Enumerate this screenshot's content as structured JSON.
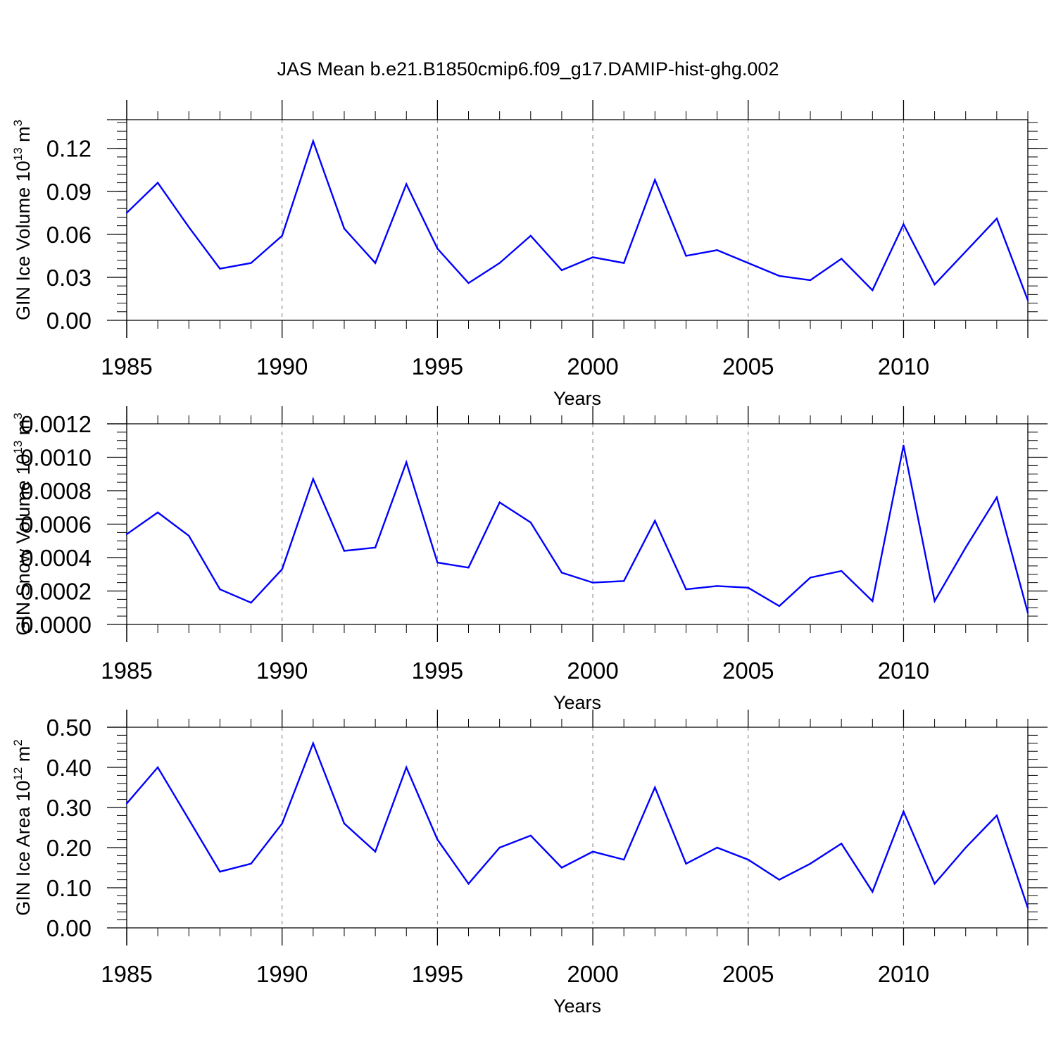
{
  "title": "JAS Mean b.e21.B1850cmip6.f09_g17.DAMIP-hist-ghg.002",
  "colors": {
    "line": "#0000ff",
    "axis": "#000000",
    "grid": "#777777"
  },
  "chart_data": [
    {
      "type": "line",
      "xlabel": "Years",
      "ylabel_base": "GIN Ice Volume 10",
      "ylabel_exp": "13",
      "ylabel_unit": " m",
      "ylabel_unit_exp": "3",
      "xlim": [
        1985,
        2014
      ],
      "ylim": [
        0,
        0.14
      ],
      "xticks": [
        1985,
        1990,
        1995,
        2000,
        2005,
        2010
      ],
      "yticks": [
        "0.00",
        "0.03",
        "0.06",
        "0.09",
        "0.12"
      ],
      "grid": "vertical dashed at major x ticks",
      "x": [
        1985,
        1986,
        1987,
        1988,
        1989,
        1990,
        1991,
        1992,
        1993,
        1994,
        1995,
        1996,
        1997,
        1998,
        1999,
        2000,
        2001,
        2002,
        2003,
        2004,
        2005,
        2006,
        2007,
        2008,
        2009,
        2010,
        2011,
        2012,
        2013,
        2014
      ],
      "values": [
        0.075,
        0.096,
        0.065,
        0.036,
        0.04,
        0.059,
        0.125,
        0.064,
        0.04,
        0.095,
        0.05,
        0.026,
        0.04,
        0.059,
        0.035,
        0.044,
        0.04,
        0.098,
        0.045,
        0.049,
        0.04,
        0.031,
        0.028,
        0.043,
        0.021,
        0.067,
        0.025,
        0.048,
        0.071,
        0.014
      ]
    },
    {
      "type": "line",
      "xlabel": "Years",
      "ylabel_base": "GIN Snow Volume 10",
      "ylabel_exp": "13",
      "ylabel_unit": " m",
      "ylabel_unit_exp": "3",
      "xlim": [
        1985,
        2014
      ],
      "ylim": [
        0,
        0.0012
      ],
      "xticks": [
        1985,
        1990,
        1995,
        2000,
        2005,
        2010
      ],
      "yticks": [
        "0.0000",
        "0.0002",
        "0.0004",
        "0.0006",
        "0.0008",
        "0.0010",
        "0.0012"
      ],
      "grid": "vertical dashed at major x ticks",
      "x": [
        1985,
        1986,
        1987,
        1988,
        1989,
        1990,
        1991,
        1992,
        1993,
        1994,
        1995,
        1996,
        1997,
        1998,
        1999,
        2000,
        2001,
        2002,
        2003,
        2004,
        2005,
        2006,
        2007,
        2008,
        2009,
        2010,
        2011,
        2012,
        2013,
        2014
      ],
      "values": [
        0.00054,
        0.00067,
        0.00053,
        0.00021,
        0.00013,
        0.00033,
        0.00087,
        0.00044,
        0.00046,
        0.00097,
        0.00037,
        0.00034,
        0.00073,
        0.00061,
        0.00031,
        0.00025,
        0.00026,
        0.00062,
        0.00021,
        0.00023,
        0.00022,
        0.00011,
        0.00028,
        0.00032,
        0.00014,
        0.00107,
        0.00014,
        0.00046,
        0.00076,
        7e-05
      ]
    },
    {
      "type": "line",
      "xlabel": "Years",
      "ylabel_base": "GIN Ice Area 10",
      "ylabel_exp": "12",
      "ylabel_unit": " m",
      "ylabel_unit_exp": "2",
      "xlim": [
        1985,
        2014
      ],
      "ylim": [
        0,
        0.5
      ],
      "xticks": [
        1985,
        1990,
        1995,
        2000,
        2005,
        2010
      ],
      "yticks": [
        "0.00",
        "0.10",
        "0.20",
        "0.30",
        "0.40",
        "0.50"
      ],
      "grid": "vertical dashed at major x ticks",
      "x": [
        1985,
        1986,
        1987,
        1988,
        1989,
        1990,
        1991,
        1992,
        1993,
        1994,
        1995,
        1996,
        1997,
        1998,
        1999,
        2000,
        2001,
        2002,
        2003,
        2004,
        2005,
        2006,
        2007,
        2008,
        2009,
        2010,
        2011,
        2012,
        2013,
        2014
      ],
      "values": [
        0.31,
        0.4,
        0.27,
        0.14,
        0.16,
        0.26,
        0.46,
        0.26,
        0.19,
        0.4,
        0.22,
        0.11,
        0.2,
        0.23,
        0.15,
        0.19,
        0.17,
        0.35,
        0.16,
        0.2,
        0.17,
        0.12,
        0.16,
        0.21,
        0.09,
        0.29,
        0.11,
        0.2,
        0.28,
        0.05
      ]
    }
  ]
}
